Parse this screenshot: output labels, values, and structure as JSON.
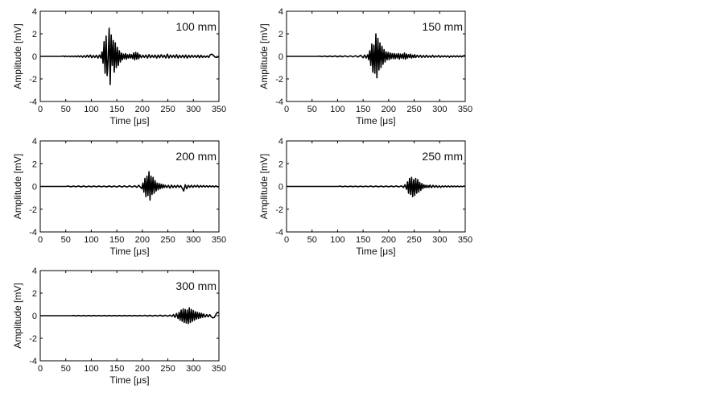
{
  "figure": {
    "background": "#ffffff",
    "line_color": "#000000",
    "text_color": "#111111"
  },
  "chart_data": [
    {
      "type": "line",
      "label": "100 mm",
      "xlabel": "Time [μs]",
      "ylabel": "Amplitude [mV]",
      "xlim": [
        0,
        350
      ],
      "ylim": [
        -4,
        4
      ],
      "xticks": [
        0,
        50,
        100,
        150,
        200,
        250,
        300,
        350
      ],
      "yticks": [
        -4,
        -2,
        0,
        2,
        4
      ],
      "grid": false,
      "series": [
        {
          "x": [
            0,
            40,
            46,
            48,
            50,
            53,
            56,
            59,
            62,
            65,
            68,
            71,
            74,
            77,
            80,
            83,
            86,
            89,
            92,
            95,
            98,
            101,
            104,
            107,
            110,
            113,
            116,
            119,
            121,
            123,
            125,
            127,
            129,
            131,
            133,
            135,
            137,
            139,
            141,
            143,
            145,
            147,
            149,
            151,
            153,
            155,
            157,
            159,
            161,
            163,
            165,
            167,
            169,
            171,
            173,
            175,
            177,
            179,
            181,
            183,
            185,
            187,
            189,
            191,
            193,
            195,
            198,
            201,
            204,
            207,
            210,
            213,
            216,
            219,
            222,
            225,
            228,
            231,
            234,
            237,
            240,
            243,
            246,
            249,
            252,
            255,
            258,
            261,
            264,
            267,
            270,
            273,
            276,
            279,
            282,
            285,
            288,
            291,
            294,
            297,
            300,
            303,
            306,
            309,
            312,
            315,
            318,
            321,
            324,
            327,
            330,
            333,
            336,
            339,
            342,
            345,
            348,
            350
          ],
          "y": [
            0,
            0,
            0.03,
            -0.03,
            0.03,
            -0.03,
            0.03,
            -0.04,
            0.04,
            -0.04,
            0.04,
            -0.05,
            0.05,
            -0.05,
            0.06,
            -0.08,
            0.07,
            -0.08,
            0.1,
            -0.08,
            0.12,
            -0.12,
            0.08,
            -0.1,
            0.1,
            -0.15,
            0.12,
            -0.15,
            0.4,
            -0.6,
            1.3,
            -1.5,
            1.8,
            -1.7,
            -0.3,
            2.5,
            -2.5,
            1.9,
            -0.8,
            1.4,
            -1.4,
            1.2,
            -1.0,
            0.8,
            -0.8,
            0.5,
            -0.5,
            0.3,
            -0.3,
            0.2,
            -0.2,
            0.25,
            -0.25,
            0.15,
            -0.15,
            0.2,
            -0.15,
            0.15,
            -0.2,
            0.3,
            -0.3,
            0.35,
            -0.25,
            0.3,
            -0.2,
            0.15,
            -0.12,
            0.1,
            -0.1,
            0.12,
            -0.15,
            0.15,
            -0.12,
            0.1,
            -0.1,
            0.12,
            -0.15,
            0.12,
            -0.12,
            0.15,
            -0.1,
            0.1,
            -0.15,
            0.2,
            -0.15,
            0.12,
            -0.1,
            0.1,
            -0.12,
            0.15,
            -0.15,
            0.1,
            -0.1,
            0.1,
            -0.12,
            0.12,
            -0.15,
            0.1,
            -0.1,
            0.1,
            -0.08,
            0.08,
            -0.1,
            0.1,
            -0.12,
            0.1,
            -0.1,
            0.05,
            -0.08,
            0.05,
            -0.1,
            0.15,
            0.2,
            0.1,
            -0.05,
            -0.1,
            -0.05,
            0
          ]
        }
      ]
    },
    {
      "type": "line",
      "label": "150 mm",
      "xlabel": "Time [μs]",
      "ylabel": "Amplitude [mV]",
      "xlim": [
        0,
        350
      ],
      "ylim": [
        -4,
        4
      ],
      "xticks": [
        0,
        50,
        100,
        150,
        200,
        250,
        300,
        350
      ],
      "yticks": [
        -4,
        -2,
        0,
        2,
        4
      ],
      "grid": false,
      "series": [
        {
          "x": [
            0,
            60,
            65,
            70,
            75,
            80,
            85,
            90,
            95,
            100,
            105,
            110,
            115,
            120,
            125,
            130,
            135,
            140,
            145,
            150,
            153,
            156,
            159,
            161,
            163,
            165,
            167,
            169,
            171,
            173,
            175,
            177,
            179,
            181,
            183,
            185,
            187,
            189,
            191,
            193,
            195,
            197,
            199,
            201,
            203,
            205,
            207,
            209,
            211,
            213,
            215,
            217,
            219,
            221,
            223,
            225,
            227,
            229,
            231,
            233,
            235,
            237,
            239,
            241,
            243,
            245,
            247,
            249,
            251,
            253,
            256,
            259,
            262,
            265,
            268,
            271,
            274,
            277,
            280,
            283,
            286,
            289,
            292,
            295,
            298,
            301,
            304,
            307,
            310,
            313,
            316,
            319,
            322,
            325,
            328,
            331,
            334,
            337,
            340,
            343,
            346,
            348,
            350
          ],
          "y": [
            0,
            0,
            0.02,
            -0.02,
            0.03,
            -0.03,
            0.03,
            -0.03,
            0.04,
            -0.04,
            0.04,
            -0.04,
            0.05,
            -0.05,
            0.05,
            -0.05,
            0.06,
            -0.06,
            0.1,
            -0.12,
            0.12,
            -0.15,
            0.15,
            -0.3,
            0.5,
            -0.8,
            1.1,
            -1.4,
            1.0,
            -1.5,
            2.0,
            -1.9,
            1.6,
            -1.2,
            1.2,
            -1.0,
            0.9,
            -0.7,
            0.6,
            -0.5,
            0.4,
            -0.3,
            0.35,
            -0.3,
            0.3,
            -0.2,
            0.25,
            -0.2,
            0.25,
            -0.2,
            0.2,
            -0.15,
            0.25,
            -0.25,
            0.2,
            -0.15,
            0.2,
            -0.2,
            0.3,
            -0.25,
            0.2,
            -0.15,
            0.15,
            -0.1,
            0.2,
            -0.15,
            0.1,
            -0.1,
            0.15,
            -0.1,
            0.1,
            -0.08,
            0.1,
            -0.1,
            0.08,
            -0.08,
            0.1,
            -0.08,
            0.05,
            -0.08,
            0.1,
            -0.08,
            0.05,
            -0.05,
            0.08,
            -0.08,
            0.05,
            -0.05,
            0.05,
            -0.05,
            0.05,
            -0.08,
            0.05,
            -0.05,
            0.05,
            -0.05,
            0.05,
            -0.05,
            0.05,
            -0.05,
            0.05,
            0.05,
            0.1
          ]
        }
      ]
    },
    {
      "type": "line",
      "label": "200 mm",
      "xlabel": "Time [μs]",
      "ylabel": "Amplitude [mV]",
      "xlim": [
        0,
        350
      ],
      "ylim": [
        -4,
        4
      ],
      "xticks": [
        0,
        50,
        100,
        150,
        200,
        250,
        300,
        350
      ],
      "yticks": [
        -4,
        -2,
        0,
        2,
        4
      ],
      "grid": false,
      "series": [
        {
          "x": [
            0,
            50,
            55,
            60,
            65,
            70,
            75,
            80,
            85,
            90,
            95,
            100,
            105,
            110,
            115,
            120,
            125,
            130,
            135,
            140,
            145,
            150,
            155,
            160,
            165,
            170,
            175,
            180,
            185,
            189,
            193,
            197,
            199,
            201,
            203,
            205,
            207,
            209,
            211,
            213,
            215,
            217,
            219,
            221,
            223,
            225,
            227,
            229,
            231,
            233,
            235,
            237,
            239,
            241,
            243,
            245,
            248,
            251,
            254,
            257,
            260,
            263,
            266,
            269,
            272,
            275,
            278,
            281,
            284,
            287,
            290,
            293,
            296,
            299,
            302,
            305,
            308,
            311,
            314,
            317,
            320,
            323,
            326,
            329,
            332,
            335,
            338,
            341,
            344,
            347,
            350
          ],
          "y": [
            0,
            0,
            0.03,
            -0.03,
            0.03,
            -0.03,
            0.04,
            -0.04,
            0.04,
            -0.04,
            0.03,
            -0.03,
            0.03,
            -0.03,
            0.03,
            -0.03,
            0.03,
            -0.04,
            0.04,
            -0.04,
            0.04,
            -0.05,
            0.05,
            -0.05,
            0.05,
            -0.06,
            0.06,
            -0.06,
            0.06,
            -0.08,
            0.1,
            -0.1,
            -0.2,
            0.3,
            -0.5,
            0.7,
            -0.9,
            0.9,
            -0.8,
            1.3,
            -1.2,
            0.9,
            -0.7,
            0.8,
            -0.6,
            0.5,
            -0.4,
            0.3,
            -0.3,
            0.25,
            -0.2,
            0.2,
            -0.15,
            0.15,
            -0.1,
            0.1,
            -0.1,
            0.1,
            -0.15,
            0.12,
            -0.1,
            0.08,
            -0.1,
            0.1,
            -0.08,
            0.08,
            -0.15,
            -0.4,
            0.15,
            -0.2,
            0.1,
            -0.08,
            0.1,
            -0.08,
            0.08,
            -0.05,
            0.1,
            -0.08,
            0.08,
            -0.05,
            0.08,
            -0.05,
            0.06,
            -0.06,
            0.06,
            -0.04,
            0.05,
            -0.05,
            0.06,
            -0.04,
            0.0
          ]
        }
      ]
    },
    {
      "type": "line",
      "label": "250 mm",
      "xlabel": "Time [μs]",
      "ylabel": "Amplitude [mV]",
      "xlim": [
        0,
        350
      ],
      "ylim": [
        -4,
        4
      ],
      "xticks": [
        0,
        50,
        100,
        150,
        200,
        250,
        300,
        350
      ],
      "yticks": [
        -4,
        -2,
        0,
        2,
        4
      ],
      "grid": false,
      "series": [
        {
          "x": [
            0,
            100,
            105,
            110,
            115,
            120,
            125,
            130,
            135,
            140,
            145,
            150,
            155,
            160,
            165,
            170,
            175,
            180,
            185,
            190,
            195,
            200,
            205,
            210,
            215,
            220,
            225,
            229,
            232,
            235,
            237,
            239,
            241,
            243,
            245,
            247,
            249,
            251,
            253,
            255,
            257,
            259,
            261,
            263,
            265,
            267,
            269,
            271,
            273,
            275,
            277,
            279,
            281,
            284,
            287,
            290,
            293,
            296,
            299,
            302,
            305,
            308,
            311,
            314,
            317,
            320,
            323,
            326,
            329,
            332,
            335,
            338,
            341,
            344,
            347,
            350
          ],
          "y": [
            0,
            0,
            0.02,
            -0.02,
            0.02,
            -0.02,
            0.02,
            -0.02,
            0.02,
            -0.02,
            0.02,
            -0.02,
            0.02,
            -0.02,
            0.03,
            -0.03,
            0.03,
            -0.03,
            0.03,
            -0.03,
            0.03,
            -0.03,
            0.03,
            -0.03,
            0.04,
            -0.04,
            0.05,
            -0.1,
            0.15,
            -0.25,
            0.4,
            -0.6,
            0.7,
            -0.7,
            0.8,
            -0.9,
            0.6,
            -0.8,
            0.7,
            -0.6,
            0.6,
            -0.5,
            0.35,
            -0.35,
            0.25,
            -0.2,
            0.15,
            -0.1,
            0.1,
            -0.1,
            0.08,
            -0.08,
            0.12,
            -0.1,
            0.1,
            -0.08,
            0.08,
            -0.08,
            0.06,
            -0.08,
            0.05,
            -0.05,
            0.05,
            -0.05,
            0.05,
            -0.05,
            0.05,
            -0.04,
            0.04,
            -0.04,
            0.04,
            -0.04,
            0.03,
            -0.03,
            0.03,
            0.0
          ]
        }
      ]
    },
    {
      "type": "line",
      "label": "300 mm",
      "xlabel": "Time [μs]",
      "ylabel": "Amplitude [mV]",
      "xlim": [
        0,
        350
      ],
      "ylim": [
        -4,
        4
      ],
      "xticks": [
        0,
        50,
        100,
        150,
        200,
        250,
        300,
        350
      ],
      "yticks": [
        -4,
        -2,
        0,
        2,
        4
      ],
      "grid": false,
      "series": [
        {
          "x": [
            0,
            60,
            65,
            70,
            75,
            80,
            85,
            90,
            95,
            100,
            105,
            110,
            115,
            120,
            125,
            130,
            135,
            140,
            145,
            150,
            155,
            160,
            165,
            170,
            175,
            180,
            185,
            190,
            195,
            200,
            205,
            210,
            215,
            220,
            225,
            230,
            235,
            240,
            245,
            250,
            254,
            258,
            261,
            264,
            267,
            270,
            272,
            274,
            276,
            278,
            280,
            282,
            284,
            286,
            288,
            290,
            292,
            294,
            296,
            298,
            300,
            302,
            304,
            306,
            308,
            310,
            312,
            314,
            316,
            318,
            320,
            323,
            326,
            329,
            332,
            335,
            338,
            341,
            344,
            347,
            350
          ],
          "y": [
            0,
            0,
            0.02,
            -0.02,
            0.02,
            -0.02,
            0.02,
            -0.02,
            0.02,
            -0.02,
            0.02,
            -0.02,
            0.02,
            -0.02,
            0.02,
            -0.02,
            0.02,
            -0.02,
            0.02,
            -0.02,
            0.02,
            -0.02,
            0.02,
            -0.02,
            0.02,
            -0.02,
            0.02,
            -0.02,
            0.02,
            -0.02,
            0.03,
            -0.03,
            0.03,
            -0.03,
            0.03,
            -0.03,
            0.04,
            -0.04,
            0.04,
            -0.05,
            0.05,
            -0.06,
            0.1,
            -0.15,
            0.2,
            -0.25,
            0.3,
            -0.4,
            0.5,
            -0.5,
            0.6,
            -0.6,
            0.55,
            -0.65,
            0.5,
            -0.7,
            0.7,
            -0.6,
            0.55,
            -0.5,
            0.45,
            -0.4,
            0.35,
            -0.3,
            0.3,
            -0.25,
            0.25,
            -0.2,
            0.2,
            -0.15,
            0.15,
            -0.12,
            0.1,
            -0.1,
            0.1,
            -0.1,
            -0.2,
            -0.15,
            0.1,
            0.3,
            0.25
          ]
        }
      ]
    }
  ]
}
